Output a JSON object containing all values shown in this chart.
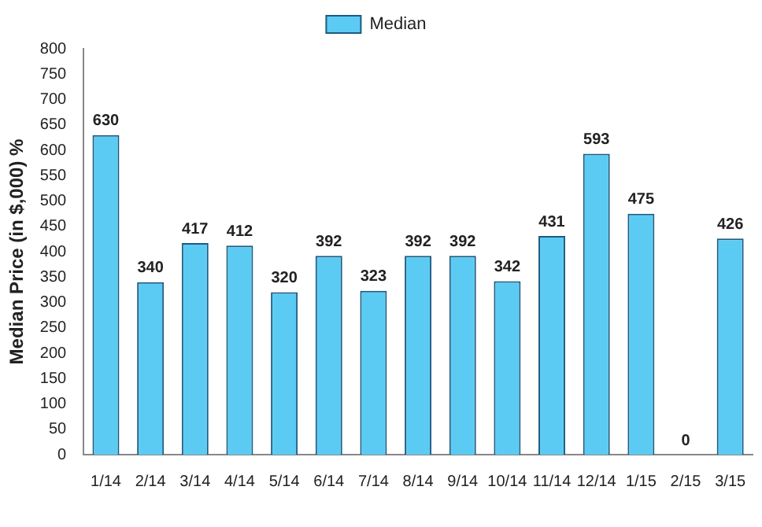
{
  "chart_data": {
    "type": "bar",
    "ylabel": "Median Price (in $,000) %",
    "categories": [
      "1/14",
      "2/14",
      "3/14",
      "4/14",
      "5/14",
      "6/14",
      "7/14",
      "8/14",
      "9/14",
      "10/14",
      "11/14",
      "12/14",
      "1/15",
      "2/15",
      "3/15"
    ],
    "series": [
      {
        "name": "Median",
        "color": "#5ccbf3",
        "values": [
          630,
          340,
          417,
          412,
          320,
          392,
          323,
          392,
          392,
          342,
          431,
          593,
          475,
          0,
          426
        ]
      }
    ],
    "ylim": [
      0,
      800
    ],
    "yticks": [
      0,
      50,
      100,
      150,
      200,
      250,
      300,
      350,
      400,
      450,
      500,
      550,
      600,
      650,
      700,
      750,
      800
    ],
    "grid": false,
    "legend": "top",
    "data_labels": true
  }
}
